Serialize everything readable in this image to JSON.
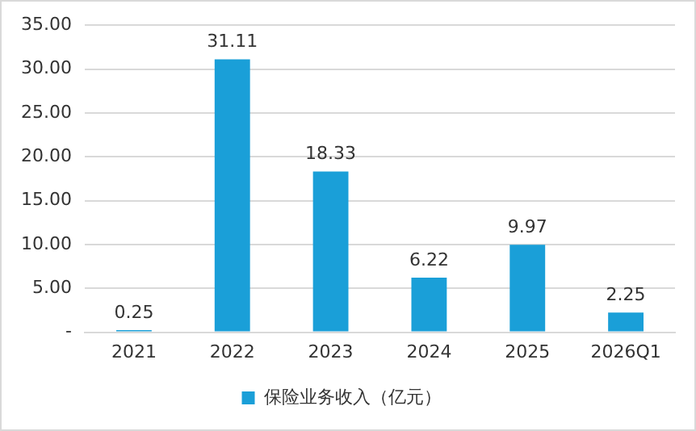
{
  "chart_data": {
    "type": "bar",
    "categories": [
      "2021",
      "2022",
      "2023",
      "2024",
      "2025",
      "2026Q1"
    ],
    "series": [
      {
        "name": "保险业务收入（亿元）",
        "color": "#1a9fd8",
        "values": [
          0.25,
          31.11,
          18.33,
          6.22,
          9.97,
          2.25
        ]
      }
    ],
    "ylim": [
      0,
      35
    ],
    "yticks": [
      {
        "value": 0,
        "label": "-"
      },
      {
        "value": 5,
        "label": "5.00"
      },
      {
        "value": 10,
        "label": "10.00"
      },
      {
        "value": 15,
        "label": "15.00"
      },
      {
        "value": 20,
        "label": "20.00"
      },
      {
        "value": 25,
        "label": "25.00"
      },
      {
        "value": 30,
        "label": "30.00"
      },
      {
        "value": 35,
        "label": "35.00"
      }
    ],
    "grid": "y",
    "legend": "bottom",
    "data_labels": true
  }
}
